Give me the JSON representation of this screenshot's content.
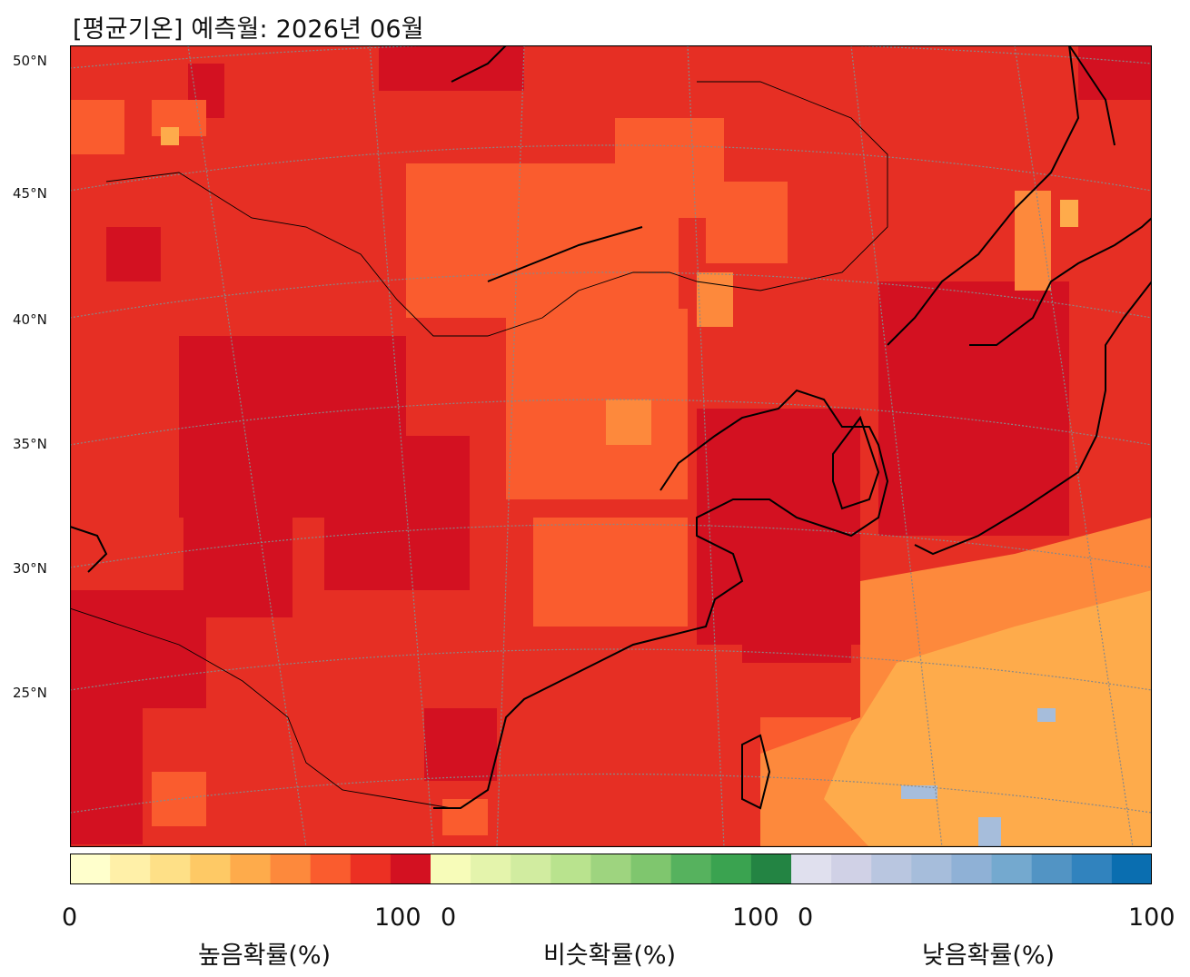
{
  "title": "[평균기온] 예측월: 2026년 06월",
  "lat_labels": [
    "50°N",
    "45°N",
    "40°N",
    "35°N",
    "30°N",
    "25°N"
  ],
  "colorbar": {
    "groups": [
      {
        "name": "higher",
        "label": "높음확률(%)",
        "min": "0",
        "max": "100",
        "colors": [
          "#ffffcc",
          "#fff0a8",
          "#fee087",
          "#fec965",
          "#feab4b",
          "#fd893c",
          "#fa5c2e",
          "#ec3023",
          "#d31121"
        ]
      },
      {
        "name": "similar",
        "label": "비슷확률(%)",
        "min": "0",
        "max": "100",
        "colors": [
          "#f7fcb9",
          "#e4f4ac",
          "#d1eca0",
          "#b9e38e",
          "#9ed47f",
          "#7fc66e",
          "#56b25e",
          "#3aa350",
          "#238443"
        ]
      },
      {
        "name": "lower",
        "label": "낮음확률(%)",
        "min": "0",
        "max": "100",
        "colors": [
          "#e0e0ee",
          "#d0d1e6",
          "#b9c6e0",
          "#a6bddb",
          "#8fb1d6",
          "#74a9cf",
          "#5294c4",
          "#3183be",
          "#0a6eb0"
        ]
      }
    ]
  },
  "map_colors": {
    "base": "#e62f24",
    "darkest": "#d31121",
    "orange": "#fa5c2e",
    "light_orange": "#fd893c",
    "yellow_orange": "#feab4b",
    "pale_blue": "#a6bddb",
    "coast": "#000000",
    "grid": "#888888"
  }
}
